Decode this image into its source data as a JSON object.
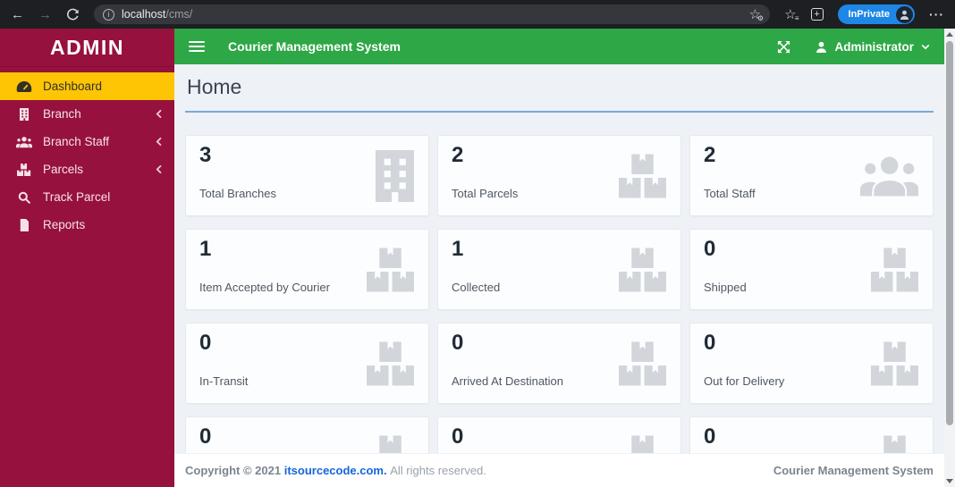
{
  "browser": {
    "back_glyph": "←",
    "forward_glyph": "→",
    "url_host": "localhost",
    "url_path": "/cms/",
    "inprivate_label": "InPrivate",
    "menu_dots": "···"
  },
  "navbar": {
    "title": "Courier Management System",
    "user_label": "Administrator"
  },
  "sidebar": {
    "brand": "ADMIN",
    "items": [
      {
        "label": "Dashboard",
        "icon": "tachometer-icon",
        "active": true,
        "has_submenu": false
      },
      {
        "label": "Branch",
        "icon": "building-icon",
        "active": false,
        "has_submenu": true
      },
      {
        "label": "Branch Staff",
        "icon": "users-icon",
        "active": false,
        "has_submenu": true
      },
      {
        "label": "Parcels",
        "icon": "boxes-icon",
        "active": false,
        "has_submenu": true
      },
      {
        "label": "Track Parcel",
        "icon": "search-icon",
        "active": false,
        "has_submenu": false
      },
      {
        "label": "Reports",
        "icon": "file-icon",
        "active": false,
        "has_submenu": false
      }
    ]
  },
  "page": {
    "title": "Home"
  },
  "stats": [
    {
      "value": "3",
      "label": "Total Branches",
      "icon": "building-icon"
    },
    {
      "value": "2",
      "label": "Total Parcels",
      "icon": "boxes-icon"
    },
    {
      "value": "2",
      "label": "Total Staff",
      "icon": "users-icon"
    },
    {
      "value": "1",
      "label": "Item Accepted by Courier",
      "icon": "boxes-icon"
    },
    {
      "value": "1",
      "label": "Collected",
      "icon": "boxes-icon"
    },
    {
      "value": "0",
      "label": "Shipped",
      "icon": "boxes-icon"
    },
    {
      "value": "0",
      "label": "In-Transit",
      "icon": "boxes-icon"
    },
    {
      "value": "0",
      "label": "Arrived At Destination",
      "icon": "boxes-icon"
    },
    {
      "value": "0",
      "label": "Out for Delivery",
      "icon": "boxes-icon"
    },
    {
      "value": "0",
      "label": "",
      "icon": "boxes-icon"
    },
    {
      "value": "0",
      "label": "",
      "icon": "boxes-icon"
    },
    {
      "value": "0",
      "label": "",
      "icon": "boxes-icon"
    }
  ],
  "footer": {
    "copyright": "Copyright © 2021",
    "link": "itsourcecode.com.",
    "rights": "All rights reserved.",
    "right_text": "Courier Management System"
  },
  "colors": {
    "sidebar_bg": "#97113E",
    "active_item_bg": "#FEC505",
    "navbar_bg": "#2EA746",
    "content_bg": "#EEF1F5",
    "card_border": "#E6E9ED",
    "icon_gray": "#D2D6DB",
    "divider_blue": "#7AA7D9",
    "link_blue": "#1266DD",
    "inprivate_blue": "#1E87E5"
  }
}
